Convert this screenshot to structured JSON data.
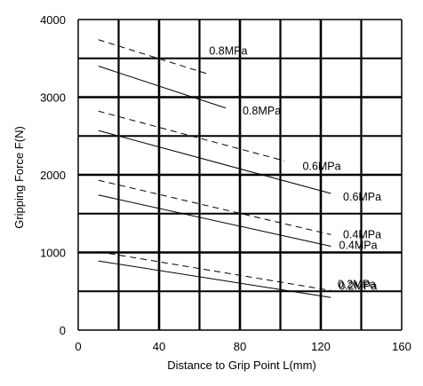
{
  "chart_data": {
    "type": "line",
    "title": "",
    "xlabel": "Distance to Grip Point  L(mm)",
    "ylabel": "Gripping Force  F(N)",
    "xlim": [
      0,
      160
    ],
    "ylim": [
      0,
      4000
    ],
    "xticks": [
      0,
      40,
      80,
      120,
      160
    ],
    "yticks": [
      0,
      1000,
      2000,
      3000,
      4000
    ],
    "grid": true,
    "series": [
      {
        "name": "0.8MPa",
        "style": "dashed",
        "x": [
          10,
          64
        ],
        "y": [
          3740,
          3300
        ]
      },
      {
        "name": "0.8MPa",
        "style": "solid",
        "x": [
          10,
          73
        ],
        "y": [
          3400,
          2860
        ]
      },
      {
        "name": "0.6MPa",
        "style": "dashed",
        "x": [
          10,
          102
        ],
        "y": [
          2820,
          2180
        ]
      },
      {
        "name": "0.6MPa",
        "style": "solid",
        "x": [
          10,
          125
        ],
        "y": [
          2570,
          1760
        ]
      },
      {
        "name": "0.4MPa",
        "style": "dashed",
        "x": [
          10,
          125
        ],
        "y": [
          1930,
          1230
        ]
      },
      {
        "name": "0.4MPa",
        "style": "solid",
        "x": [
          10,
          125
        ],
        "y": [
          1740,
          1080
        ]
      },
      {
        "name": "0.2MPa",
        "style": "dashed",
        "x": [
          10,
          125
        ],
        "y": [
          1010,
          510
        ]
      },
      {
        "name": "0.2MPa",
        "style": "solid",
        "x": [
          10,
          125
        ],
        "y": [
          890,
          420
        ]
      }
    ]
  }
}
